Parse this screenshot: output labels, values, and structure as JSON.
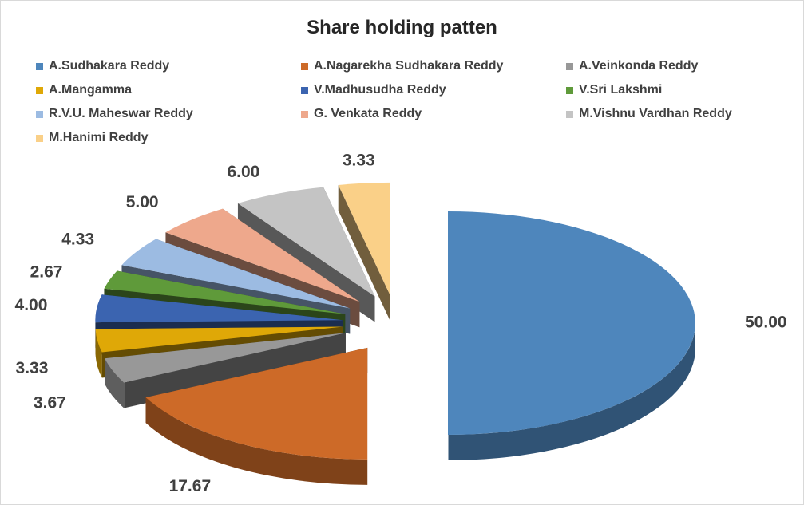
{
  "chart_data": {
    "type": "pie",
    "title": "Share holding patten",
    "legend_position": "top",
    "slices": [
      {
        "name": "A.Sudhakara Reddy",
        "value": 50.0,
        "label": "50.00",
        "color": "#4e86bc"
      },
      {
        "name": "A.Nagarekha Sudhakara Reddy",
        "value": 17.67,
        "label": "17.67",
        "color": "#cd6a28"
      },
      {
        "name": "A.Veinkonda Reddy",
        "value": 3.67,
        "label": "3.67",
        "color": "#989898"
      },
      {
        "name": "A.Mangamma",
        "value": 3.33,
        "label": "3.33",
        "color": "#dfa807"
      },
      {
        "name": "V.Madhusudha Reddy",
        "value": 4.0,
        "label": "4.00",
        "color": "#3b64b0"
      },
      {
        "name": "V.Sri Lakshmi",
        "value": 2.67,
        "label": "2.67",
        "color": "#5f9a3a"
      },
      {
        "name": "R.V.U. Maheswar Reddy",
        "value": 4.33,
        "label": "4.33",
        "color": "#9cbbe2"
      },
      {
        "name": "G. Venkata Reddy",
        "value": 5.0,
        "label": "5.00",
        "color": "#eea88c"
      },
      {
        "name": "M.Vishnu Vardhan Reddy",
        "value": 6.0,
        "label": "6.00",
        "color": "#c4c4c4"
      },
      {
        "name": "M.Hanimi Reddy",
        "value": 3.33,
        "label": "3.33",
        "color": "#fad088"
      }
    ]
  }
}
